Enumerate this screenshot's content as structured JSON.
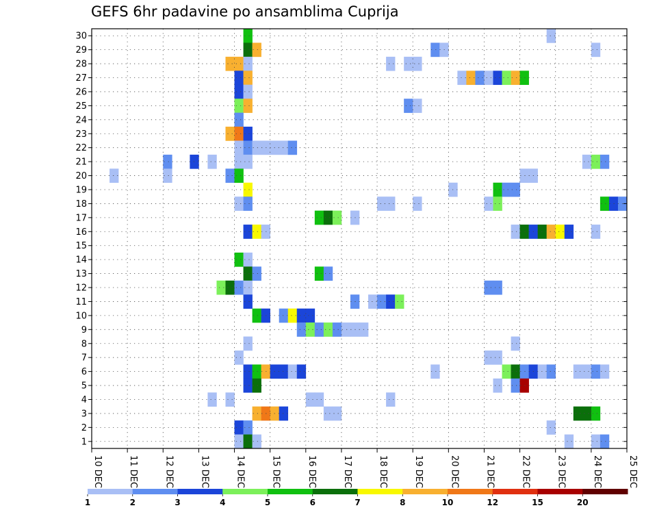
{
  "chart_data": {
    "type": "heatmap",
    "title": "GEFS 6hr padavine po ansamblima Cuprija",
    "xlabel": "",
    "ylabel": "",
    "x_tick_labels": [
      "10 DEC",
      "11 DEC",
      "12 DEC",
      "13 DEC",
      "14 DEC",
      "15 DEC",
      "16 DEC",
      "17 DEC",
      "18 DEC",
      "19 DEC",
      "20 DEC",
      "21 DEC",
      "22 DEC",
      "23 DEC",
      "24 DEC",
      "25 DEC"
    ],
    "y_tick_labels": [
      "1",
      "2",
      "3",
      "4",
      "5",
      "6",
      "7",
      "8",
      "9",
      "10",
      "11",
      "12",
      "13",
      "14",
      "15",
      "16",
      "17",
      "18",
      "19",
      "20",
      "21",
      "22",
      "23",
      "24",
      "25",
      "26",
      "27",
      "28",
      "29",
      "30"
    ],
    "xlim_days": [
      10,
      25
    ],
    "ylim": [
      0.5,
      30.5
    ],
    "step_hours": 6,
    "grid": true,
    "legend_position": "bottom",
    "legend": {
      "levels": [
        "1",
        "2",
        "3",
        "4",
        "5",
        "6",
        "7",
        "8",
        "10",
        "12",
        "15",
        "20"
      ],
      "colors": [
        "#a9bff5",
        "#5f8ef0",
        "#1b45d9",
        "#7cf05a",
        "#10c010",
        "#0b6f0b",
        "#f8f800",
        "#f8b030",
        "#f07818",
        "#e03010",
        "#a80000",
        "#600000"
      ]
    },
    "cells": [
      {
        "m": 30,
        "d": "14.25",
        "v": 5
      },
      {
        "m": 30,
        "d": "22.75",
        "v": 1
      },
      {
        "m": 29,
        "d": "14.25",
        "v": 6
      },
      {
        "m": 29,
        "d": "14.5",
        "v": 9
      },
      {
        "m": 29,
        "d": "19.5",
        "v": 2
      },
      {
        "m": 29,
        "d": "19.75",
        "v": 1
      },
      {
        "m": 29,
        "d": "24",
        "v": 1
      },
      {
        "m": 28,
        "d": "13.75",
        "v": 8
      },
      {
        "m": 28,
        "d": "14",
        "v": 9
      },
      {
        "m": 28,
        "d": "14.25",
        "v": 1
      },
      {
        "m": 28,
        "d": "18.25",
        "v": 1
      },
      {
        "m": 28,
        "d": "18.75",
        "v": 1
      },
      {
        "m": 28,
        "d": "19",
        "v": 1
      },
      {
        "m": 27,
        "d": "14",
        "v": 3
      },
      {
        "m": 27,
        "d": "14.25",
        "v": 9
      },
      {
        "m": 27,
        "d": "20.25",
        "v": 1
      },
      {
        "m": 27,
        "d": "20.5",
        "v": 9
      },
      {
        "m": 27,
        "d": "20.75",
        "v": 2
      },
      {
        "m": 27,
        "d": "21",
        "v": 1
      },
      {
        "m": 27,
        "d": "21.25",
        "v": 3
      },
      {
        "m": 27,
        "d": "21.5",
        "v": 4
      },
      {
        "m": 27,
        "d": "21.75",
        "v": 8
      },
      {
        "m": 27,
        "d": "22",
        "v": 5
      },
      {
        "m": 26,
        "d": "14",
        "v": 3
      },
      {
        "m": 26,
        "d": "14.25",
        "v": 1
      },
      {
        "m": 25,
        "d": "14",
        "v": 4
      },
      {
        "m": 25,
        "d": "14.25",
        "v": 8
      },
      {
        "m": 25,
        "d": "18.75",
        "v": 2
      },
      {
        "m": 25,
        "d": "19",
        "v": 1
      },
      {
        "m": 24,
        "d": "14",
        "v": 2
      },
      {
        "m": 23,
        "d": "13.75",
        "v": 8
      },
      {
        "m": 23,
        "d": "14",
        "v": 10
      },
      {
        "m": 23,
        "d": "14.25",
        "v": 3
      },
      {
        "m": 22,
        "d": "14",
        "v": 1
      },
      {
        "m": 22,
        "d": "14.25",
        "v": 2
      },
      {
        "m": 22,
        "d": "14.5",
        "v": 1
      },
      {
        "m": 22,
        "d": "14.75",
        "v": 1
      },
      {
        "m": 22,
        "d": "15",
        "v": 1
      },
      {
        "m": 22,
        "d": "15.25",
        "v": 1
      },
      {
        "m": 22,
        "d": "15.5",
        "v": 2
      },
      {
        "m": 21,
        "d": "12",
        "v": 2
      },
      {
        "m": 21,
        "d": "12.75",
        "v": 3
      },
      {
        "m": 21,
        "d": "13.25",
        "v": 1
      },
      {
        "m": 21,
        "d": "14",
        "v": 1
      },
      {
        "m": 21,
        "d": "14.25",
        "v": 1
      },
      {
        "m": 21,
        "d": "23.75",
        "v": 1
      },
      {
        "m": 21,
        "d": "24",
        "v": 4
      },
      {
        "m": 21,
        "d": "24.25",
        "v": 2
      },
      {
        "m": 20,
        "d": "10.5",
        "v": 1
      },
      {
        "m": 20,
        "d": "12",
        "v": 1
      },
      {
        "m": 20,
        "d": "13.75",
        "v": 2
      },
      {
        "m": 20,
        "d": "14",
        "v": 5
      },
      {
        "m": 20,
        "d": "22",
        "v": 1
      },
      {
        "m": 20,
        "d": "22.25",
        "v": 1
      },
      {
        "m": 19,
        "d": "14.25",
        "v": 7
      },
      {
        "m": 19,
        "d": "20",
        "v": 1
      },
      {
        "m": 19,
        "d": "21.25",
        "v": 5
      },
      {
        "m": 19,
        "d": "21.5",
        "v": 2
      },
      {
        "m": 19,
        "d": "21.75",
        "v": 2
      },
      {
        "m": 18,
        "d": "14",
        "v": 1
      },
      {
        "m": 18,
        "d": "14.25",
        "v": 2
      },
      {
        "m": 18,
        "d": "18",
        "v": 1
      },
      {
        "m": 18,
        "d": "18.25",
        "v": 1
      },
      {
        "m": 18,
        "d": "19",
        "v": 1
      },
      {
        "m": 18,
        "d": "21",
        "v": 1
      },
      {
        "m": 18,
        "d": "21.25",
        "v": 4
      },
      {
        "m": 18,
        "d": "24.25",
        "v": 5
      },
      {
        "m": 18,
        "d": "24.5",
        "v": 3
      },
      {
        "m": 18,
        "d": "24.75",
        "v": 2
      },
      {
        "m": 17,
        "d": "16.25",
        "v": 5
      },
      {
        "m": 17,
        "d": "16.5",
        "v": 6
      },
      {
        "m": 17,
        "d": "16.75",
        "v": 4
      },
      {
        "m": 17,
        "d": "17.25",
        "v": 1
      },
      {
        "m": 16,
        "d": "14.25",
        "v": 3
      },
      {
        "m": 16,
        "d": "14.5",
        "v": 7
      },
      {
        "m": 16,
        "d": "14.75",
        "v": 1
      },
      {
        "m": 16,
        "d": "21.75",
        "v": 1
      },
      {
        "m": 16,
        "d": "22",
        "v": 6
      },
      {
        "m": 16,
        "d": "22.25",
        "v": 3
      },
      {
        "m": 16,
        "d": "22.5",
        "v": 6
      },
      {
        "m": 16,
        "d": "22.75",
        "v": 9
      },
      {
        "m": 16,
        "d": "23",
        "v": 7
      },
      {
        "m": 16,
        "d": "23.25",
        "v": 3
      },
      {
        "m": 16,
        "d": "24",
        "v": 1
      },
      {
        "m": 14,
        "d": "14",
        "v": 5
      },
      {
        "m": 14,
        "d": "14.25",
        "v": 1
      },
      {
        "m": 13,
        "d": "14.25",
        "v": 6
      },
      {
        "m": 13,
        "d": "14.5",
        "v": 2
      },
      {
        "m": 13,
        "d": "16.25",
        "v": 5
      },
      {
        "m": 13,
        "d": "16.5",
        "v": 2
      },
      {
        "m": 12,
        "d": "13.5",
        "v": 4
      },
      {
        "m": 12,
        "d": "13.75",
        "v": 6
      },
      {
        "m": 12,
        "d": "14",
        "v": 2
      },
      {
        "m": 12,
        "d": "14.25",
        "v": 1
      },
      {
        "m": 12,
        "d": "21",
        "v": 2
      },
      {
        "m": 12,
        "d": "21.25",
        "v": 2
      },
      {
        "m": 11,
        "d": "14.25",
        "v": 3
      },
      {
        "m": 11,
        "d": "17.25",
        "v": 2
      },
      {
        "m": 11,
        "d": "17.75",
        "v": 1
      },
      {
        "m": 11,
        "d": "18",
        "v": 2
      },
      {
        "m": 11,
        "d": "18.25",
        "v": 3
      },
      {
        "m": 11,
        "d": "18.5",
        "v": 4
      },
      {
        "m": 10,
        "d": "14.5",
        "v": 5
      },
      {
        "m": 10,
        "d": "14.75",
        "v": 3
      },
      {
        "m": 10,
        "d": "15.25",
        "v": 2
      },
      {
        "m": 10,
        "d": "15.5",
        "v": 7
      },
      {
        "m": 10,
        "d": "15.75",
        "v": 3
      },
      {
        "m": 10,
        "d": "16",
        "v": 3
      },
      {
        "m": 9,
        "d": "15.75",
        "v": 2
      },
      {
        "m": 9,
        "d": "16",
        "v": 4
      },
      {
        "m": 9,
        "d": "16.25",
        "v": 2
      },
      {
        "m": 9,
        "d": "16.5",
        "v": 4
      },
      {
        "m": 9,
        "d": "16.75",
        "v": 2
      },
      {
        "m": 9,
        "d": "17",
        "v": 1
      },
      {
        "m": 9,
        "d": "17.25",
        "v": 1
      },
      {
        "m": 9,
        "d": "17.5",
        "v": 1
      },
      {
        "m": 8,
        "d": "14.25",
        "v": 1
      },
      {
        "m": 8,
        "d": "21.75",
        "v": 1
      },
      {
        "m": 7,
        "d": "14",
        "v": 1
      },
      {
        "m": 7,
        "d": "21",
        "v": 1
      },
      {
        "m": 7,
        "d": "21.25",
        "v": 1
      },
      {
        "m": 6,
        "d": "14.25",
        "v": 3
      },
      {
        "m": 6,
        "d": "14.5",
        "v": 5
      },
      {
        "m": 6,
        "d": "14.75",
        "v": 9
      },
      {
        "m": 6,
        "d": "15",
        "v": 3
      },
      {
        "m": 6,
        "d": "15.25",
        "v": 3
      },
      {
        "m": 6,
        "d": "15.5",
        "v": 1
      },
      {
        "m": 6,
        "d": "15.75",
        "v": 3
      },
      {
        "m": 6,
        "d": "19.5",
        "v": 1
      },
      {
        "m": 6,
        "d": "21.5",
        "v": 4
      },
      {
        "m": 6,
        "d": "21.75",
        "v": 6
      },
      {
        "m": 6,
        "d": "22",
        "v": 2
      },
      {
        "m": 6,
        "d": "22.25",
        "v": 3
      },
      {
        "m": 6,
        "d": "22.5",
        "v": 1
      },
      {
        "m": 6,
        "d": "22.75",
        "v": 2
      },
      {
        "m": 6,
        "d": "23.5",
        "v": 1
      },
      {
        "m": 6,
        "d": "23.75",
        "v": 1
      },
      {
        "m": 6,
        "d": "24",
        "v": 2
      },
      {
        "m": 6,
        "d": "24.25",
        "v": 1
      },
      {
        "m": 5,
        "d": "14.25",
        "v": 3
      },
      {
        "m": 5,
        "d": "14.5",
        "v": 6
      },
      {
        "m": 5,
        "d": "21.25",
        "v": 1
      },
      {
        "m": 5,
        "d": "21.75",
        "v": 2
      },
      {
        "m": 5,
        "d": "22",
        "v": 15
      },
      {
        "m": 4,
        "d": "13.25",
        "v": 1
      },
      {
        "m": 4,
        "d": "13.75",
        "v": 1
      },
      {
        "m": 4,
        "d": "16",
        "v": 1
      },
      {
        "m": 4,
        "d": "16.25",
        "v": 1
      },
      {
        "m": 4,
        "d": "18.25",
        "v": 1
      },
      {
        "m": 3,
        "d": "14.5",
        "v": 9
      },
      {
        "m": 3,
        "d": "14.75",
        "v": 10
      },
      {
        "m": 3,
        "d": "15",
        "v": 9
      },
      {
        "m": 3,
        "d": "15.25",
        "v": 3
      },
      {
        "m": 3,
        "d": "16.5",
        "v": 1
      },
      {
        "m": 3,
        "d": "16.75",
        "v": 1
      },
      {
        "m": 3,
        "d": "23.5",
        "v": 6
      },
      {
        "m": 3,
        "d": "23.75",
        "v": 6
      },
      {
        "m": 3,
        "d": "24",
        "v": 5
      },
      {
        "m": 2,
        "d": "14",
        "v": 3
      },
      {
        "m": 2,
        "d": "14.25",
        "v": 2
      },
      {
        "m": 2,
        "d": "22.75",
        "v": 1
      },
      {
        "m": 1,
        "d": "14",
        "v": 1
      },
      {
        "m": 1,
        "d": "14.25",
        "v": 6
      },
      {
        "m": 1,
        "d": "14.5",
        "v": 1
      },
      {
        "m": 1,
        "d": "23.25",
        "v": 1
      },
      {
        "m": 1,
        "d": "24",
        "v": 1
      },
      {
        "m": 1,
        "d": "24.25",
        "v": 2
      }
    ]
  }
}
